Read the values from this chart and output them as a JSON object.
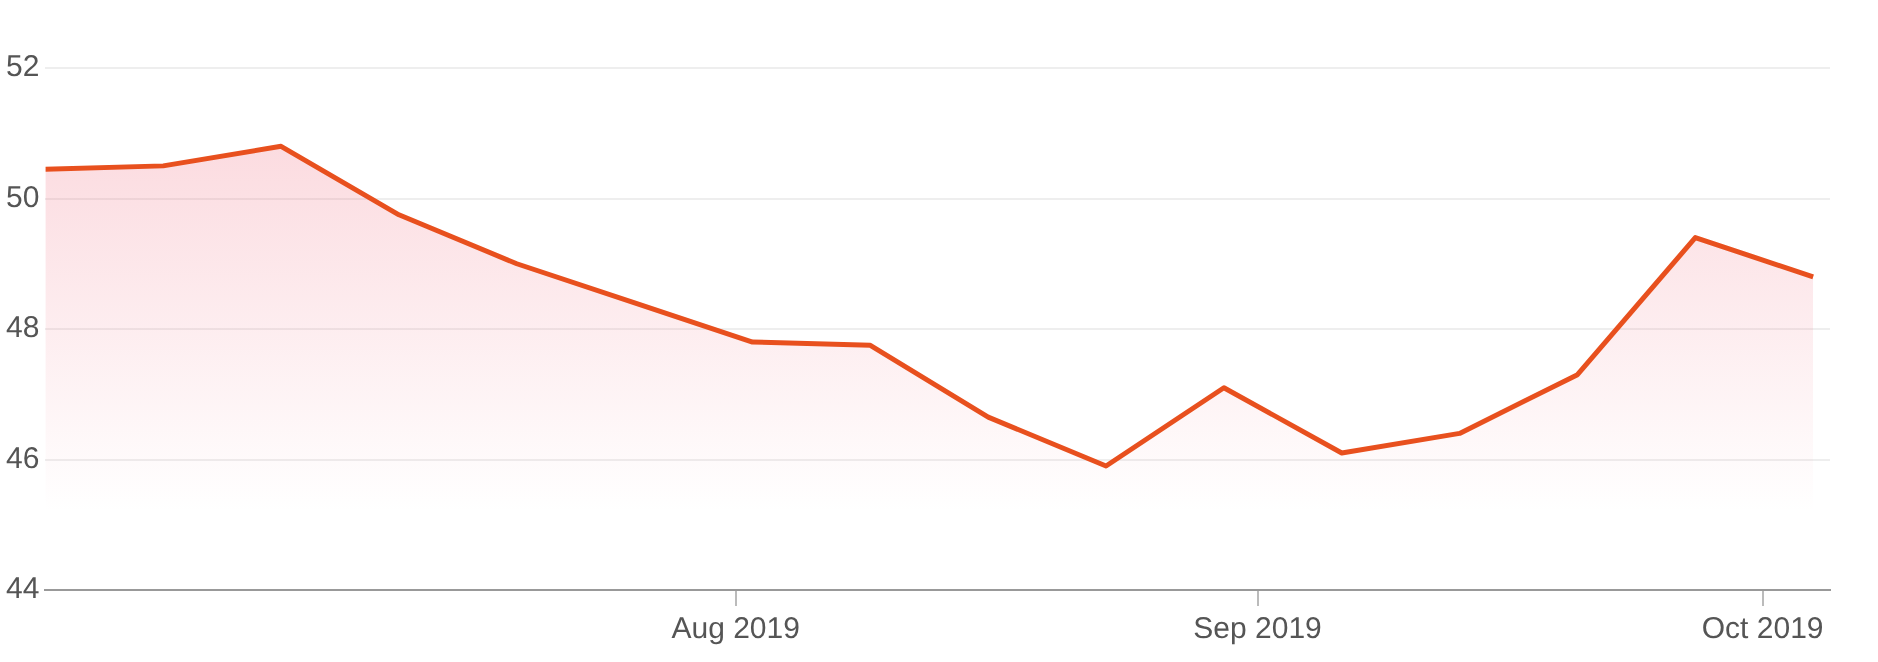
{
  "chart_data": {
    "type": "area",
    "x": [
      "2019-06-21",
      "2019-06-28",
      "2019-07-05",
      "2019-07-12",
      "2019-07-19",
      "2019-07-26",
      "2019-08-02",
      "2019-08-09",
      "2019-08-16",
      "2019-08-23",
      "2019-08-30",
      "2019-09-06",
      "2019-09-13",
      "2019-09-20",
      "2019-09-27",
      "2019-10-04"
    ],
    "series": [
      {
        "color": "#e8501e",
        "values": [
          50.45,
          50.5,
          50.8,
          49.75,
          49.0,
          48.4,
          47.8,
          47.75,
          46.65,
          45.9,
          47.1,
          46.1,
          46.4,
          47.3,
          49.4,
          48.8
        ]
      }
    ],
    "xlim": [
      "2019-06-21",
      "2019-10-05"
    ],
    "xticks": [
      {
        "value": "2019-08-01",
        "label": "Aug 2019"
      },
      {
        "value": "2019-09-01",
        "label": "Sep 2019"
      },
      {
        "value": "2019-10-01",
        "label": "Oct 2019"
      }
    ],
    "ylim": [
      44,
      52
    ],
    "yticks": [
      44,
      46,
      48,
      50,
      52
    ],
    "grid": "y",
    "legend": false
  }
}
